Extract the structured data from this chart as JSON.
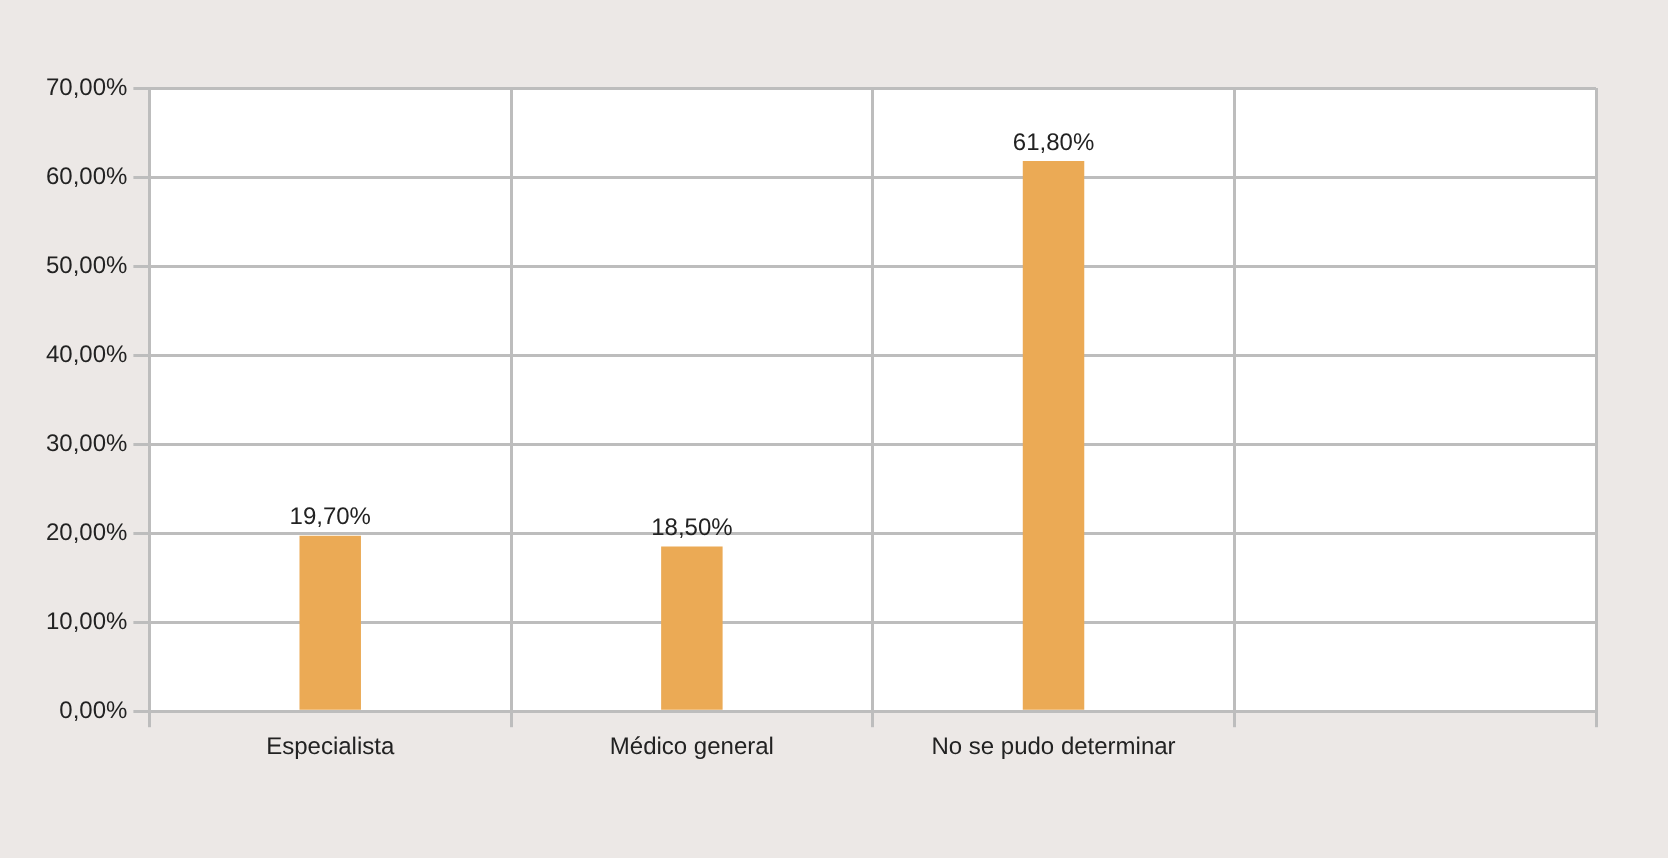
{
  "chart_data": {
    "type": "bar",
    "categories": [
      "Especialista",
      "Médico general",
      "No se pudo determinar",
      null
    ],
    "values": [
      19.7,
      18.5,
      61.8,
      null
    ],
    "value_labels": [
      "19,70%",
      "18,50%",
      "61,80%",
      null
    ],
    "color": "#ebaa55",
    "ylim": [
      0,
      70
    ],
    "yticks": [
      {
        "value": 0,
        "label": "0,00%"
      },
      {
        "value": 10,
        "label": "10,00%"
      },
      {
        "value": 20,
        "label": "20,00%"
      },
      {
        "value": 30,
        "label": "30,00%"
      },
      {
        "value": 40,
        "label": "40,00%"
      },
      {
        "value": 50,
        "label": "50,00%"
      },
      {
        "value": 60,
        "label": "60,00%"
      },
      {
        "value": 70,
        "label": "70,00%"
      }
    ],
    "grid": true,
    "legend": false
  }
}
